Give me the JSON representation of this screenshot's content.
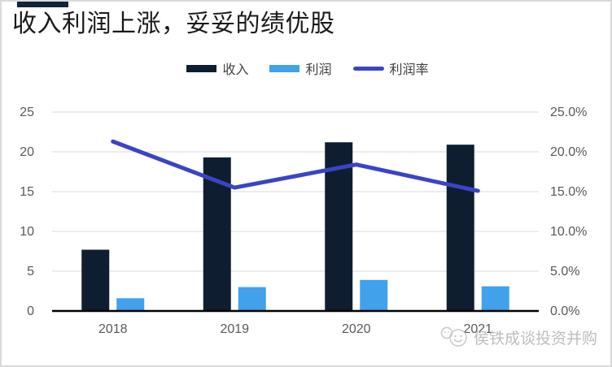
{
  "page": {
    "title": "收入利润上涨，妥妥的绩优股"
  },
  "colors": {
    "revenue_bar": "#0e1e30",
    "profit_bar": "#41a1ea",
    "margin_line": "#3b44c6",
    "gridline": "#d9d9d9",
    "axis_line": "#000000",
    "axis_text": "#595959",
    "accent_bar": "#12233a"
  },
  "chart_data": {
    "type": "bar+line combo",
    "title": "收入利润上涨，妥妥的绩优股",
    "categories": [
      "2018",
      "2019",
      "2020",
      "2021"
    ],
    "series": [
      {
        "name": "收入",
        "type": "bar",
        "axis": "left",
        "values": [
          7.7,
          19.3,
          21.2,
          20.9
        ]
      },
      {
        "name": "利润",
        "type": "bar",
        "axis": "left",
        "values": [
          1.6,
          3.0,
          3.9,
          3.1
        ]
      },
      {
        "name": "利润率",
        "type": "line",
        "axis": "right",
        "values_percent": [
          21.3,
          15.5,
          18.4,
          15.1
        ]
      }
    ],
    "left_axis": {
      "ticks": [
        0,
        5,
        10,
        15,
        20,
        25
      ],
      "range": [
        0,
        25
      ]
    },
    "right_axis": {
      "ticks": [
        "0.0%",
        "5.0%",
        "10.0%",
        "15.0%",
        "20.0%",
        "25.0%"
      ],
      "range_percent": [
        0,
        25
      ]
    },
    "grid": true,
    "legend_position": "top-center"
  },
  "watermark": {
    "icon": "chat-faces-icon",
    "text": "侯铁成谈投资并购"
  }
}
